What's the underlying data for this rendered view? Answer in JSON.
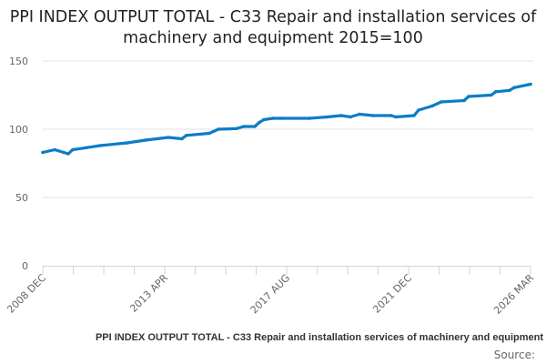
{
  "chart_data": {
    "type": "line",
    "title": "PPI INDEX OUTPUT TOTAL - C33 Repair and installation services of machinery and equipment 2015=100",
    "xlabel": "",
    "ylabel": "",
    "ylim": [
      0,
      150
    ],
    "yticks": [
      "0",
      "50",
      "100",
      "150"
    ],
    "xlim": [
      2008.92,
      2026.17
    ],
    "xtick_labels": [
      "2008 DEC",
      "2013 APR",
      "2017 AUG",
      "2021 DEC",
      "2026 MAR"
    ],
    "grid": true,
    "legend_position": "bottom-right",
    "series": [
      {
        "name": "PPI INDEX OUTPUT TOTAL - C33 Repair and installation services of machinery and equipment",
        "color": "#0b7dc6",
        "x": [
          2008.92,
          2009.34,
          2009.66,
          2009.82,
          2009.98,
          2010.46,
          2010.94,
          2011.91,
          2012.55,
          2013.36,
          2013.84,
          2014.0,
          2014.81,
          2015.13,
          2015.77,
          2016.03,
          2016.42,
          2016.58,
          2016.74,
          2017.06,
          2017.38,
          2018.35,
          2018.99,
          2019.47,
          2019.8,
          2020.12,
          2020.6,
          2021.24,
          2021.4,
          2022.05,
          2022.21,
          2022.69,
          2023.01,
          2023.82,
          2023.98,
          2024.78,
          2024.94,
          2025.43,
          2025.59,
          2026.17
        ],
        "values": [
          83,
          85,
          83,
          82,
          85,
          86.5,
          88,
          90,
          92,
          94,
          93,
          95.5,
          97,
          100,
          100.5,
          102,
          102,
          105,
          107,
          108,
          108,
          108,
          109,
          110,
          109,
          111,
          110,
          110,
          109,
          110,
          114,
          117,
          120,
          121,
          124,
          125,
          127.5,
          128.5,
          130.5,
          133
        ]
      }
    ]
  },
  "legend": {
    "label": "PPI INDEX OUTPUT TOTAL - C33 Repair and installation services of machinery and equipment"
  },
  "source": {
    "label": "Source:"
  }
}
